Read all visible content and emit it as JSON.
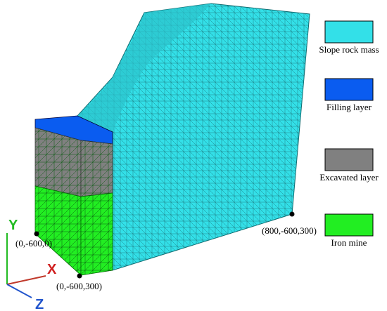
{
  "legend": [
    {
      "label": "Slope rock mass",
      "color": "#33e0e8"
    },
    {
      "label": "Filling layer",
      "color": "#0a5cf0"
    },
    {
      "label": "Excavated layer",
      "color": "#808080"
    },
    {
      "label": "Iron mine",
      "color": "#22ee22"
    }
  ],
  "points": [
    {
      "label": "(0,-600,0)"
    },
    {
      "label": "(0,-600,300)"
    },
    {
      "label": "(800,-600,300)"
    }
  ],
  "axes": {
    "x": "X",
    "y": "Y",
    "z": "Z"
  }
}
